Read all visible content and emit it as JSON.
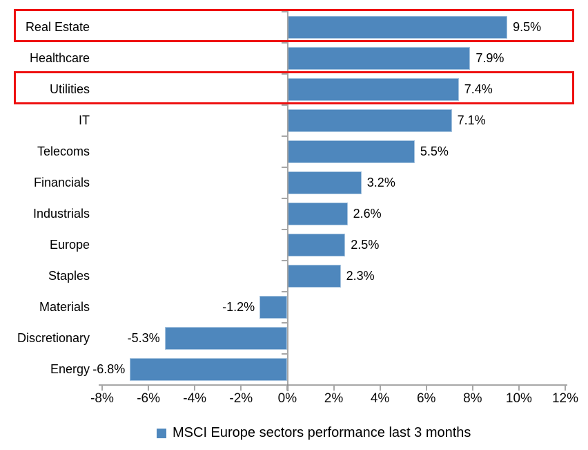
{
  "chart_data": {
    "type": "bar",
    "orientation": "horizontal",
    "title": "",
    "categories": [
      "Real Estate",
      "Healthcare",
      "Utilities",
      "IT",
      "Telecoms",
      "Financials",
      "Industrials",
      "Europe",
      "Staples",
      "Materials",
      "Discretionary",
      "Energy"
    ],
    "values": [
      9.5,
      7.9,
      7.4,
      7.1,
      5.5,
      3.2,
      2.6,
      2.5,
      2.3,
      -1.2,
      -5.3,
      -6.8
    ],
    "data_labels": [
      "9.5%",
      "7.9%",
      "7.4%",
      "7.1%",
      "5.5%",
      "3.2%",
      "2.6%",
      "2.5%",
      "2.3%",
      "-1.2%",
      "-5.3%",
      "-6.8%"
    ],
    "xlim": [
      -8,
      12
    ],
    "x_tick_step": 2,
    "x_tick_labels": [
      "-8%",
      "-6%",
      "-4%",
      "-2%",
      "0%",
      "2%",
      "4%",
      "6%",
      "8%",
      "10%",
      "12%"
    ],
    "grid": "off",
    "legend_position": "bottom",
    "legend": {
      "label": "MSCI Europe sectors performance last 3 months"
    },
    "highlighted_categories": [
      "Real Estate",
      "Utilities"
    ]
  },
  "colors": {
    "bar": "#4E87BD",
    "bar_border": "#A7C4DF",
    "axis": "#A6A6A6",
    "zero_axis_tick": "#8C8C8C",
    "highlight_box": "#EE1111",
    "text": "#000000",
    "background": "#FFFFFF"
  }
}
